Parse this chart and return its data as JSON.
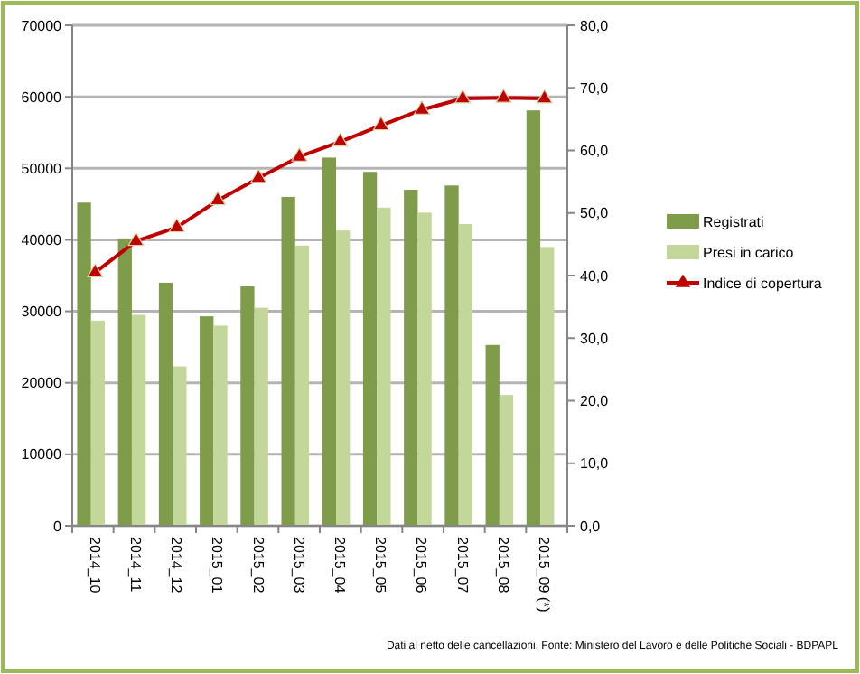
{
  "chart_data": {
    "type": "bar",
    "categories": [
      "2014_10",
      "2014_11",
      "2014_12",
      "2015_01",
      "2015_02",
      "2015_03",
      "2015_04",
      "2015_05",
      "2015_06",
      "2015_07",
      "2015_08",
      "2015_09 (*)"
    ],
    "series": [
      {
        "name": "Registrati",
        "color": "#7f9c4a",
        "values": [
          45200,
          40200,
          34000,
          29300,
          33500,
          46000,
          51500,
          49500,
          47000,
          47600,
          25300,
          58100
        ]
      },
      {
        "name": "Presi in carico",
        "color": "#c4d79b",
        "values": [
          28700,
          29500,
          22300,
          28000,
          30500,
          39200,
          41300,
          44500,
          43800,
          42200,
          18300,
          39000
        ]
      },
      {
        "name": "Indice di copertura",
        "type": "line",
        "axis": "y2",
        "color": "#c00000",
        "marker": "triangle",
        "values": [
          40.5,
          45.5,
          47.7,
          52.0,
          55.6,
          59.0,
          61.4,
          64.0,
          66.5,
          68.3,
          68.4,
          68.3
        ]
      }
    ],
    "ylim": [
      0,
      70000
    ],
    "yticks": [
      0,
      10000,
      20000,
      30000,
      40000,
      50000,
      60000,
      70000
    ],
    "y2lim": [
      0,
      80
    ],
    "y2ticks": [
      {
        "value": 0,
        "label": "0,0"
      },
      {
        "value": 10,
        "label": "10,0"
      },
      {
        "value": 20,
        "label": "20,0"
      },
      {
        "value": 30,
        "label": "30,0"
      },
      {
        "value": 40,
        "label": "40,0"
      },
      {
        "value": 50,
        "label": "50,0"
      },
      {
        "value": 60,
        "label": "60,0"
      },
      {
        "value": 70,
        "label": "70,0"
      },
      {
        "value": 80,
        "label": "80,0"
      }
    ],
    "grid": "y",
    "legend": "right",
    "annotations": [
      "Dati al netto delle cancellazioni. Fonte: Ministero del Lavoro e delle Politiche Sociali - BDPAPL"
    ]
  }
}
